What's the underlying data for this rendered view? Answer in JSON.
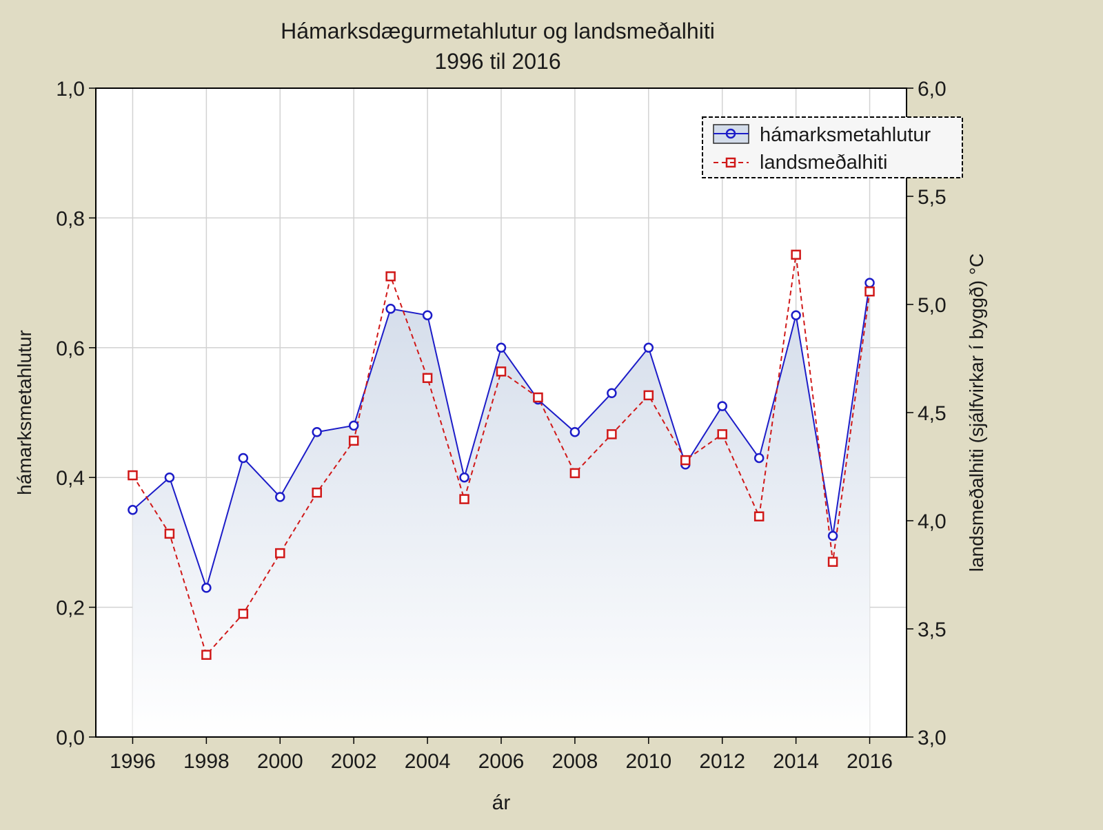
{
  "chart_data": {
    "type": "line",
    "title": "Hámarksdægurmetahlutur og landsmeðalhiti",
    "subtitle": "1996 til 2016",
    "xlabel": "ár",
    "ylabel_left": "hámarksmetahlutur",
    "ylabel_right": "landsmeðalhiti (sjálfvirkar í byggð) °C",
    "x": [
      1996,
      1997,
      1998,
      1999,
      2000,
      2001,
      2002,
      2003,
      2004,
      2005,
      2006,
      2007,
      2008,
      2009,
      2010,
      2011,
      2012,
      2013,
      2014,
      2015,
      2016
    ],
    "x_ticks": [
      "1996",
      "1998",
      "2000",
      "2002",
      "2004",
      "2006",
      "2008",
      "2010",
      "2012",
      "2014",
      "2016"
    ],
    "xlim": [
      1995,
      2017
    ],
    "ylim_left": [
      0,
      1
    ],
    "ylim_right": [
      3,
      6
    ],
    "y_ticks_left": [
      "0,0",
      "0,2",
      "0,4",
      "0,6",
      "0,8",
      "1,0"
    ],
    "y_ticks_right": [
      "3,0",
      "3,5",
      "4,0",
      "4,5",
      "5,0",
      "5,5",
      "6,0"
    ],
    "grid": true,
    "legend_position": "top-right",
    "series": [
      {
        "name": "hámarksmetahlutur",
        "axis": "left",
        "color": "#1c1cc8",
        "marker": "circle",
        "line_style": "solid",
        "area_fill": true,
        "values": [
          0.35,
          0.4,
          0.23,
          0.43,
          0.37,
          0.47,
          0.48,
          0.66,
          0.65,
          0.4,
          0.6,
          0.52,
          0.47,
          0.53,
          0.6,
          0.42,
          0.51,
          0.43,
          0.65,
          0.31,
          0.7
        ]
      },
      {
        "name": "landsmeðalhiti",
        "axis": "right",
        "color": "#d01818",
        "marker": "square",
        "line_style": "dashed",
        "values": [
          4.21,
          3.94,
          3.38,
          3.57,
          3.85,
          4.13,
          4.37,
          5.13,
          4.66,
          4.1,
          4.69,
          4.57,
          4.22,
          4.4,
          4.58,
          4.28,
          4.4,
          4.02,
          5.23,
          3.81,
          5.06
        ]
      }
    ]
  }
}
